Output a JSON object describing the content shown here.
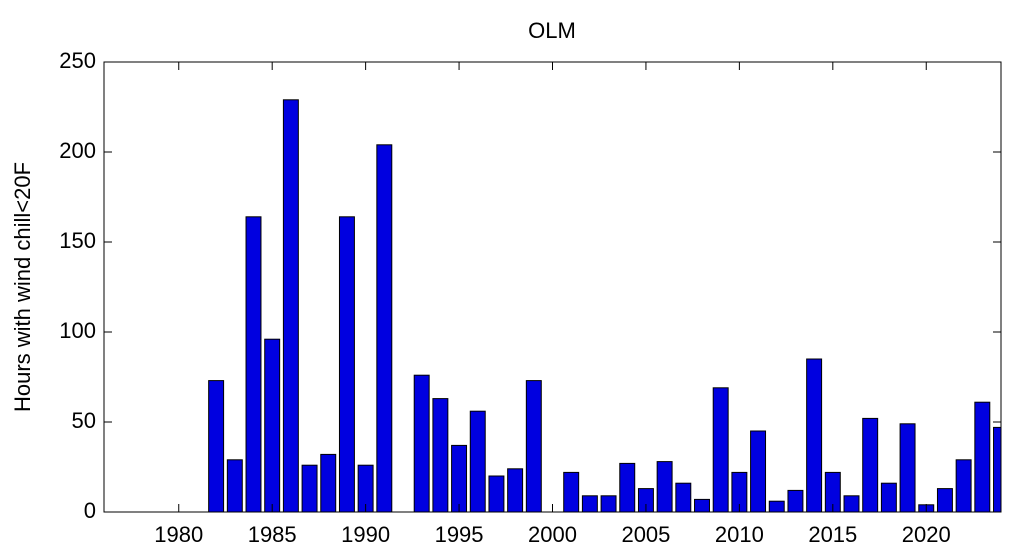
{
  "chart_data": {
    "type": "bar",
    "title": "OLM",
    "y_label": "Hours with wind chill<20F",
    "x": [
      1982,
      1983,
      1984,
      1985,
      1986,
      1987,
      1988,
      1989,
      1990,
      1991,
      1992,
      1993,
      1994,
      1995,
      1996,
      1997,
      1998,
      1999,
      2000,
      2001,
      2002,
      2003,
      2004,
      2005,
      2006,
      2007,
      2008,
      2009,
      2010,
      2011,
      2012,
      2013,
      2014,
      2015,
      2016,
      2017,
      2018,
      2019,
      2020,
      2021,
      2022,
      2023,
      2024
    ],
    "values": [
      73,
      29,
      164,
      96,
      229,
      26,
      32,
      164,
      26,
      204,
      0,
      76,
      63,
      37,
      56,
      20,
      24,
      73,
      0,
      22,
      9,
      9,
      27,
      13,
      28,
      16,
      7,
      69,
      22,
      45,
      6,
      12,
      85,
      22,
      9,
      52,
      16,
      49,
      4,
      13,
      29,
      61,
      47
    ],
    "color": "#0000e0",
    "xlim": [
      1976,
      2024
    ],
    "xticks": [
      1980,
      1985,
      1990,
      1995,
      2000,
      2005,
      2010,
      2015,
      2020
    ],
    "ylim": [
      0,
      250
    ],
    "yticks": [
      0,
      50,
      100,
      150,
      200,
      250
    ]
  }
}
